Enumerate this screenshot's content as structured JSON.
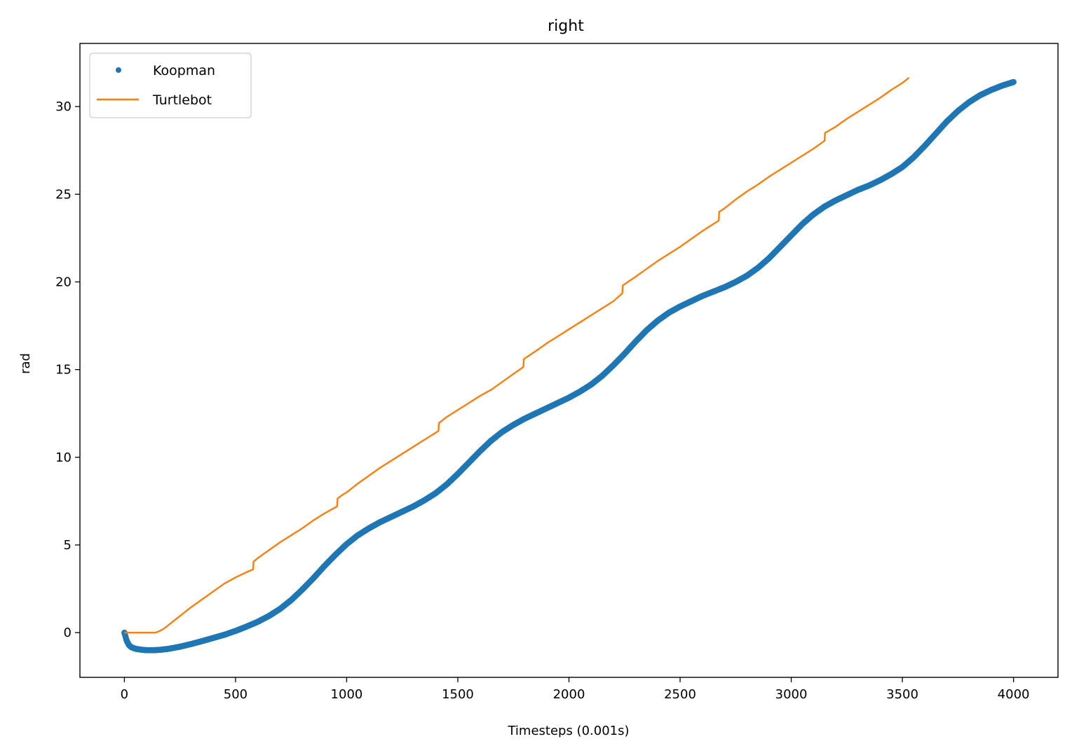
{
  "chart_data": {
    "type": "line",
    "title": "right",
    "xlabel": "Timesteps (0.001s)",
    "ylabel": "rad",
    "xlim": [
      -200,
      4200
    ],
    "ylim": [
      -2.55,
      33.6
    ],
    "xticks": [
      0,
      500,
      1000,
      1500,
      2000,
      2500,
      3000,
      3500,
      4000
    ],
    "yticks": [
      0,
      5,
      10,
      15,
      20,
      25,
      30
    ],
    "grid": false,
    "legend_position": "upper left",
    "series": [
      {
        "name": "Koopman",
        "style": "dots",
        "color": "#1f77b4",
        "x": [
          0,
          10,
          20,
          30,
          50,
          75,
          100,
          130,
          160,
          200,
          250,
          300,
          350,
          400,
          450,
          500,
          550,
          600,
          650,
          700,
          750,
          800,
          850,
          900,
          950,
          1000,
          1050,
          1100,
          1150,
          1200,
          1250,
          1300,
          1350,
          1400,
          1450,
          1500,
          1550,
          1600,
          1650,
          1700,
          1750,
          1800,
          1850,
          1900,
          1950,
          2000,
          2050,
          2100,
          2150,
          2200,
          2250,
          2300,
          2350,
          2400,
          2450,
          2500,
          2550,
          2600,
          2650,
          2700,
          2750,
          2800,
          2850,
          2900,
          2950,
          3000,
          3050,
          3100,
          3150,
          3200,
          3250,
          3300,
          3350,
          3400,
          3450,
          3500,
          3550,
          3600,
          3650,
          3700,
          3750,
          3800,
          3850,
          3900,
          3950,
          4000
        ],
        "y": [
          0,
          -0.45,
          -0.7,
          -0.82,
          -0.92,
          -0.97,
          -1.0,
          -1.0,
          -0.98,
          -0.92,
          -0.8,
          -0.65,
          -0.48,
          -0.3,
          -0.12,
          0.1,
          0.35,
          0.62,
          0.95,
          1.35,
          1.85,
          2.45,
          3.1,
          3.8,
          4.45,
          5.05,
          5.55,
          5.95,
          6.3,
          6.6,
          6.9,
          7.2,
          7.55,
          7.95,
          8.45,
          9.05,
          9.7,
          10.35,
          10.95,
          11.45,
          11.85,
          12.2,
          12.5,
          12.8,
          13.1,
          13.4,
          13.75,
          14.15,
          14.65,
          15.25,
          15.9,
          16.6,
          17.25,
          17.8,
          18.25,
          18.6,
          18.9,
          19.2,
          19.45,
          19.7,
          20.0,
          20.35,
          20.8,
          21.35,
          22.0,
          22.65,
          23.3,
          23.85,
          24.3,
          24.65,
          24.95,
          25.25,
          25.5,
          25.8,
          26.15,
          26.55,
          27.1,
          27.75,
          28.45,
          29.15,
          29.75,
          30.25,
          30.65,
          30.95,
          31.2,
          31.4
        ]
      },
      {
        "name": "Turtlebot",
        "style": "line",
        "color": "#ff7f0e",
        "x": [
          0,
          140,
          160,
          180,
          200,
          250,
          300,
          350,
          400,
          450,
          500,
          550,
          579,
          581,
          600,
          650,
          700,
          750,
          800,
          850,
          900,
          957,
          959,
          980,
          1000,
          1050,
          1100,
          1150,
          1200,
          1250,
          1300,
          1350,
          1413,
          1415,
          1450,
          1500,
          1550,
          1600,
          1650,
          1700,
          1750,
          1795,
          1797,
          1850,
          1900,
          1950,
          2000,
          2050,
          2100,
          2150,
          2200,
          2240,
          2242,
          2300,
          2350,
          2400,
          2450,
          2500,
          2550,
          2600,
          2674,
          2676,
          2700,
          2750,
          2800,
          2850,
          2900,
          2950,
          3000,
          3050,
          3100,
          3150,
          3152,
          3200,
          3250,
          3300,
          3350,
          3400,
          3450,
          3500,
          3530
        ],
        "y": [
          0,
          0,
          0.1,
          0.25,
          0.45,
          0.95,
          1.45,
          1.9,
          2.35,
          2.8,
          3.15,
          3.45,
          3.6,
          4.05,
          4.25,
          4.7,
          5.15,
          5.55,
          5.95,
          6.4,
          6.8,
          7.2,
          7.65,
          7.85,
          8.0,
          8.5,
          8.95,
          9.4,
          9.8,
          10.2,
          10.6,
          11.0,
          11.5,
          11.95,
          12.3,
          12.7,
          13.1,
          13.5,
          13.85,
          14.3,
          14.75,
          15.15,
          15.6,
          16.05,
          16.5,
          16.9,
          17.3,
          17.7,
          18.1,
          18.5,
          18.9,
          19.35,
          19.8,
          20.3,
          20.75,
          21.2,
          21.6,
          22.0,
          22.45,
          22.9,
          23.5,
          24.0,
          24.2,
          24.7,
          25.15,
          25.55,
          26.0,
          26.4,
          26.8,
          27.2,
          27.6,
          28.05,
          28.5,
          28.85,
          29.3,
          29.7,
          30.1,
          30.5,
          30.95,
          31.35,
          31.65
        ]
      }
    ]
  }
}
